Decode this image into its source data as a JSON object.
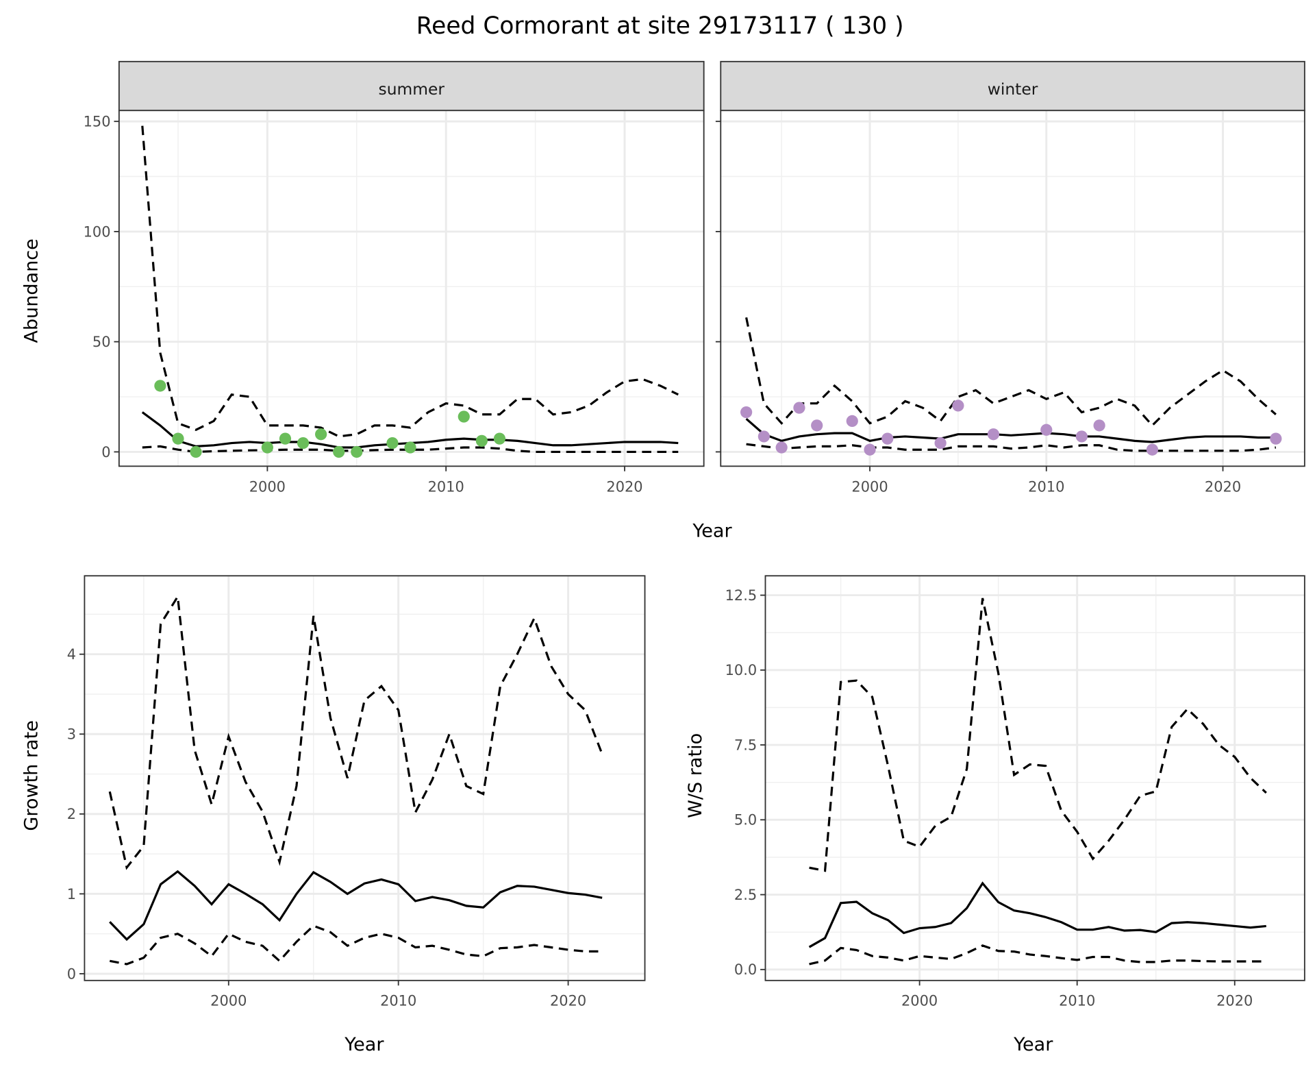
{
  "title": "Reed Cormorant at site 29173117 ( 130 )",
  "chart_data": [
    {
      "type": "line",
      "facet": "summer",
      "xlabel": "Year",
      "ylabel": "Abundance",
      "xlim": [
        1993,
        2023
      ],
      "ylim": [
        0,
        150
      ],
      "x_ticks": [
        "2000",
        "2010",
        "2020"
      ],
      "y_ticks": [
        "0",
        "50",
        "100",
        "150"
      ],
      "grid": true,
      "point_color": "#6abd5a",
      "x": [
        1993,
        1994,
        1995,
        1996,
        1997,
        1998,
        1999,
        2000,
        2001,
        2002,
        2003,
        2004,
        2005,
        2006,
        2007,
        2008,
        2009,
        2010,
        2011,
        2012,
        2013,
        2014,
        2015,
        2016,
        2017,
        2018,
        2019,
        2020,
        2021,
        2022,
        2023
      ],
      "mean": [
        18,
        12,
        5,
        2.5,
        3,
        4,
        4.5,
        4,
        4.5,
        4.5,
        3.5,
        2,
        2,
        3,
        3.5,
        4,
        4.5,
        5.5,
        6,
        5.5,
        5.5,
        5,
        4,
        3,
        3,
        3.5,
        4,
        4.5,
        4.5,
        4.5,
        4
      ],
      "upper": [
        148,
        45,
        13,
        10,
        14,
        26,
        25,
        12,
        12,
        12,
        11,
        7,
        8,
        12,
        12,
        11,
        18,
        22,
        21,
        17,
        17,
        24,
        24,
        17,
        18,
        21,
        27,
        32,
        33,
        30,
        26
      ],
      "lower": [
        2,
        2.5,
        1,
        0,
        0.3,
        0.5,
        0.7,
        0.8,
        1,
        1,
        1,
        0.5,
        0.5,
        0.8,
        1,
        1,
        1,
        1.5,
        2,
        2,
        1.5,
        0.5,
        0,
        0,
        0,
        0,
        0,
        0,
        0,
        0,
        0
      ],
      "points": {
        "x": [
          1994,
          1995,
          1996,
          2000,
          2001,
          2002,
          2003,
          2004,
          2005,
          2007,
          2008,
          2011,
          2012,
          2013
        ],
        "y": [
          30,
          6,
          0,
          2,
          6,
          4,
          8,
          0,
          0,
          4,
          2,
          16,
          5,
          6
        ]
      }
    },
    {
      "type": "line",
      "facet": "winter",
      "xlabel": "Year",
      "ylabel": "Abundance",
      "xlim": [
        1993,
        2023
      ],
      "ylim": [
        0,
        150
      ],
      "x_ticks": [
        "2000",
        "2010",
        "2020"
      ],
      "y_ticks": [
        "0",
        "50",
        "100",
        "150"
      ],
      "grid": true,
      "point_color": "#b48fc6",
      "x": [
        1993,
        1994,
        1995,
        1996,
        1997,
        1998,
        1999,
        2000,
        2001,
        2002,
        2003,
        2004,
        2005,
        2006,
        2007,
        2008,
        2009,
        2010,
        2011,
        2012,
        2013,
        2014,
        2015,
        2016,
        2017,
        2018,
        2019,
        2020,
        2021,
        2022,
        2023
      ],
      "mean": [
        15,
        8,
        5,
        7,
        8,
        8.5,
        8.5,
        5,
        6.5,
        7,
        6.5,
        6,
        8,
        8,
        8,
        7.5,
        8,
        8.5,
        8,
        7,
        7,
        6,
        5,
        4.5,
        5.5,
        6.5,
        7,
        7,
        7,
        6.5,
        6.5
      ],
      "upper": [
        61,
        22,
        13,
        22,
        22,
        30,
        23,
        13,
        16,
        23,
        20,
        14,
        25,
        28,
        22,
        25,
        28,
        24,
        27,
        18,
        20,
        24,
        21,
        12,
        20,
        26,
        32,
        37,
        32,
        24,
        17
      ],
      "lower": [
        3.5,
        2.5,
        1.5,
        2,
        2.5,
        2.5,
        3,
        2,
        2,
        1,
        1,
        1,
        2.5,
        2.5,
        2.5,
        1.5,
        2,
        3,
        2,
        3,
        3,
        1,
        0.5,
        0.5,
        0.5,
        0.5,
        0.5,
        0.5,
        0.5,
        1,
        2
      ],
      "points": {
        "x": [
          1993,
          1994,
          1995,
          1996,
          1997,
          1999,
          2000,
          2001,
          2004,
          2005,
          2007,
          2010,
          2012,
          2013,
          2016,
          2023
        ],
        "y": [
          18,
          7,
          2,
          20,
          12,
          14,
          1,
          6,
          4,
          21,
          8,
          10,
          7,
          12,
          1,
          6
        ]
      }
    },
    {
      "type": "line",
      "xlabel": "Year",
      "ylabel": "Growth rate",
      "xlim": [
        1993,
        2022
      ],
      "ylim": [
        0,
        4.72
      ],
      "x_ticks": [
        "2000",
        "2010",
        "2020"
      ],
      "y_ticks": [
        "0",
        "1",
        "2",
        "3",
        "4"
      ],
      "grid": true,
      "x": [
        1993,
        1994,
        1995,
        1996,
        1997,
        1998,
        1999,
        2000,
        2001,
        2002,
        2003,
        2004,
        2005,
        2006,
        2007,
        2008,
        2009,
        2010,
        2011,
        2012,
        2013,
        2014,
        2015,
        2016,
        2017,
        2018,
        2019,
        2020,
        2021,
        2022
      ],
      "mean": [
        0.65,
        0.43,
        0.62,
        1.12,
        1.28,
        1.1,
        0.87,
        1.12,
        1.0,
        0.87,
        0.67,
        1.0,
        1.27,
        1.15,
        1.0,
        1.13,
        1.18,
        1.12,
        0.91,
        0.96,
        0.92,
        0.85,
        0.83,
        1.02,
        1.1,
        1.09,
        1.05,
        1.01,
        0.99,
        0.95
      ],
      "upper": [
        2.28,
        1.33,
        1.6,
        4.38,
        4.72,
        2.8,
        2.12,
        2.97,
        2.4,
        2.03,
        1.4,
        2.35,
        4.48,
        3.2,
        2.45,
        3.42,
        3.6,
        3.3,
        2.02,
        2.43,
        3.0,
        2.35,
        2.25,
        3.6,
        4.0,
        4.45,
        3.85,
        3.5,
        3.3,
        2.75
      ],
      "lower": [
        0.16,
        0.12,
        0.2,
        0.45,
        0.5,
        0.38,
        0.22,
        0.5,
        0.4,
        0.35,
        0.16,
        0.4,
        0.6,
        0.52,
        0.35,
        0.45,
        0.5,
        0.45,
        0.33,
        0.35,
        0.3,
        0.24,
        0.22,
        0.32,
        0.33,
        0.36,
        0.33,
        0.3,
        0.28,
        0.28
      ]
    },
    {
      "type": "line",
      "xlabel": "Year",
      "ylabel": "W/S ratio",
      "xlim": [
        1993,
        2022
      ],
      "ylim": [
        0,
        12.4
      ],
      "x_ticks": [
        "2000",
        "2010",
        "2020"
      ],
      "y_ticks": [
        "0.0",
        "2.5",
        "5.0",
        "7.5",
        "10.0",
        "12.5"
      ],
      "grid": true,
      "x": [
        1993,
        1994,
        1995,
        1996,
        1997,
        1998,
        1999,
        2000,
        2001,
        2002,
        2003,
        2004,
        2005,
        2006,
        2007,
        2008,
        2009,
        2010,
        2011,
        2012,
        2013,
        2014,
        2015,
        2016,
        2017,
        2018,
        2019,
        2020,
        2021,
        2022
      ],
      "mean": [
        0.75,
        1.05,
        2.22,
        2.26,
        1.88,
        1.65,
        1.22,
        1.38,
        1.42,
        1.55,
        2.05,
        2.88,
        2.25,
        1.97,
        1.88,
        1.75,
        1.58,
        1.33,
        1.33,
        1.42,
        1.3,
        1.32,
        1.25,
        1.55,
        1.58,
        1.55,
        1.5,
        1.45,
        1.4,
        1.45
      ],
      "upper": [
        3.4,
        3.3,
        9.6,
        9.65,
        9.1,
        6.8,
        4.3,
        4.1,
        4.8,
        5.1,
        6.7,
        12.4,
        9.9,
        6.5,
        6.85,
        6.8,
        5.3,
        4.6,
        3.7,
        4.3,
        5.0,
        5.8,
        5.95,
        8.1,
        8.7,
        8.2,
        7.5,
        7.1,
        6.4,
        5.9
      ],
      "lower": [
        0.18,
        0.3,
        0.72,
        0.65,
        0.45,
        0.4,
        0.3,
        0.45,
        0.4,
        0.35,
        0.55,
        0.8,
        0.62,
        0.6,
        0.5,
        0.45,
        0.38,
        0.32,
        0.42,
        0.42,
        0.3,
        0.25,
        0.25,
        0.3,
        0.3,
        0.28,
        0.27,
        0.27,
        0.27,
        0.27
      ]
    }
  ]
}
